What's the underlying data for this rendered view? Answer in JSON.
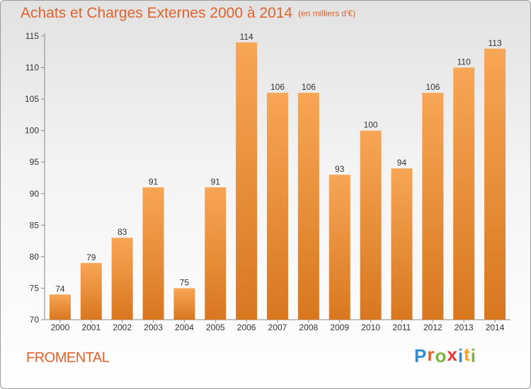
{
  "title": "Achats et Charges Externes 2000 à 2014",
  "subtitle": "(en milliers d'€)",
  "commune": "FROMENTAL",
  "logo": {
    "letters": [
      "P",
      "r",
      "o",
      "x",
      "i",
      "t",
      "i"
    ],
    "colors": [
      "#2d8fd6",
      "#e2622b",
      "#7cb342",
      "#e53935",
      "#2d8fd6",
      "#f5a623",
      "#7cb342"
    ]
  },
  "colors": {
    "title": "#e2622b",
    "bar_light": "#f7a655",
    "bar_dark": "#d9771f",
    "axis": "#888888"
  },
  "chart_data": {
    "type": "bar",
    "categories": [
      "2000",
      "2001",
      "2002",
      "2003",
      "2004",
      "2005",
      "2006",
      "2007",
      "2008",
      "2009",
      "2010",
      "2011",
      "2012",
      "2013",
      "2014"
    ],
    "values": [
      74,
      79,
      83,
      91,
      75,
      91,
      114,
      106,
      106,
      93,
      100,
      94,
      106,
      110,
      113
    ],
    "ylim": [
      70,
      115
    ],
    "yticks": [
      70,
      75,
      80,
      85,
      90,
      95,
      100,
      105,
      110,
      115
    ],
    "grid": false,
    "data_labels": true
  }
}
